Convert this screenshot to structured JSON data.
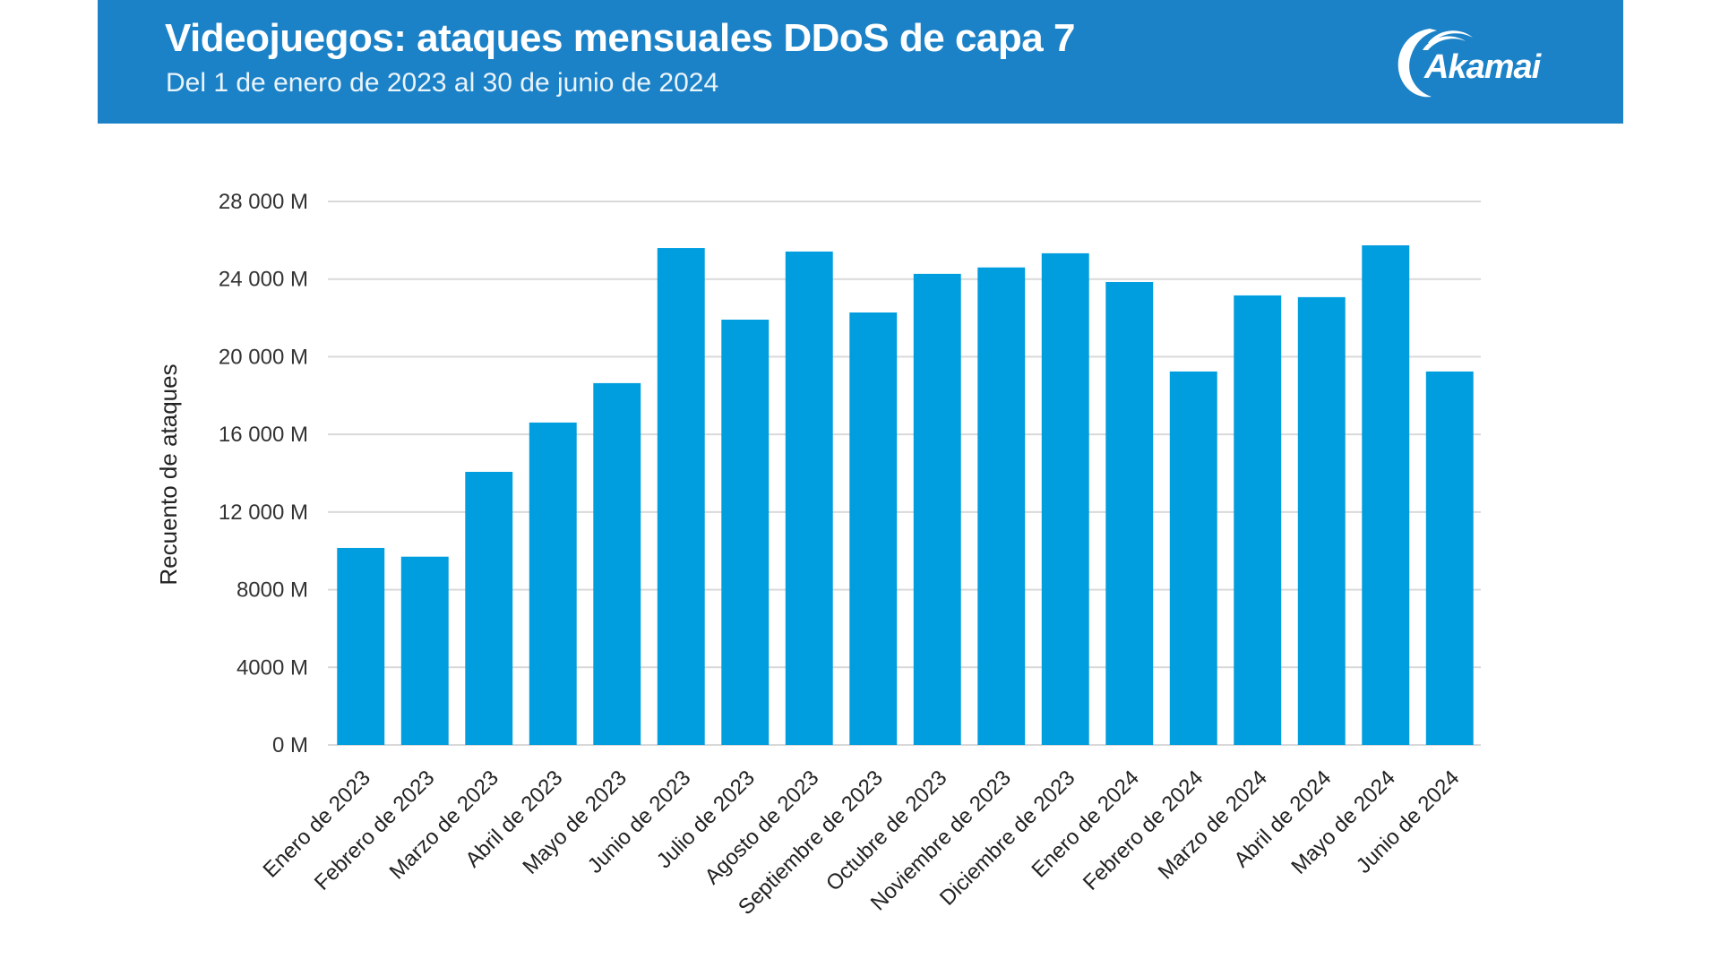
{
  "header": {
    "title": "Videojuegos: ataques mensuales DDoS de capa 7",
    "subtitle": "Del 1 de enero de 2023 al 30 de junio de 2024",
    "logo_text": "Akamai",
    "logo_icon": "akamai-wave-logo",
    "background_color": "#1c82c7"
  },
  "chart_data": {
    "type": "bar",
    "title": "Videojuegos: ataques mensuales DDoS de capa 7",
    "subtitle": "Del 1 de enero de 2023 al 30 de junio de 2024",
    "xlabel": "",
    "ylabel": "Recuento de ataques",
    "ylim": [
      0,
      28000
    ],
    "yunit": "M",
    "yticks": [
      0,
      4000,
      8000,
      12000,
      16000,
      20000,
      24000,
      28000
    ],
    "ytick_labels": [
      "0 M",
      "4000 M",
      "8000 M",
      "12 000 M",
      "16 000 M",
      "20 000 M",
      "24 000 M",
      "28 000 M"
    ],
    "grid": true,
    "legend": "none",
    "bar_color": "#009ddf",
    "categories": [
      "Enero de 2023",
      "Febrero de 2023",
      "Marzo de 2023",
      "Abril de 2023",
      "Mayo de 2023",
      "Junio de 2023",
      "Julio de 2023",
      "Agosto de 2023",
      "Septiembre de 2023",
      "Octubre de 2023",
      "Noviembre de 2023",
      "Diciembre de 2023",
      "Enero de 2024",
      "Febrero de 2024",
      "Marzo de 2024",
      "Abril de 2024",
      "Mayo de 2024",
      "Junio de 2024"
    ],
    "values": [
      10150,
      9700,
      14070,
      16610,
      18640,
      25600,
      21910,
      25420,
      22280,
      24270,
      24600,
      25330,
      23850,
      19240,
      23160,
      23070,
      25740,
      19240
    ]
  }
}
